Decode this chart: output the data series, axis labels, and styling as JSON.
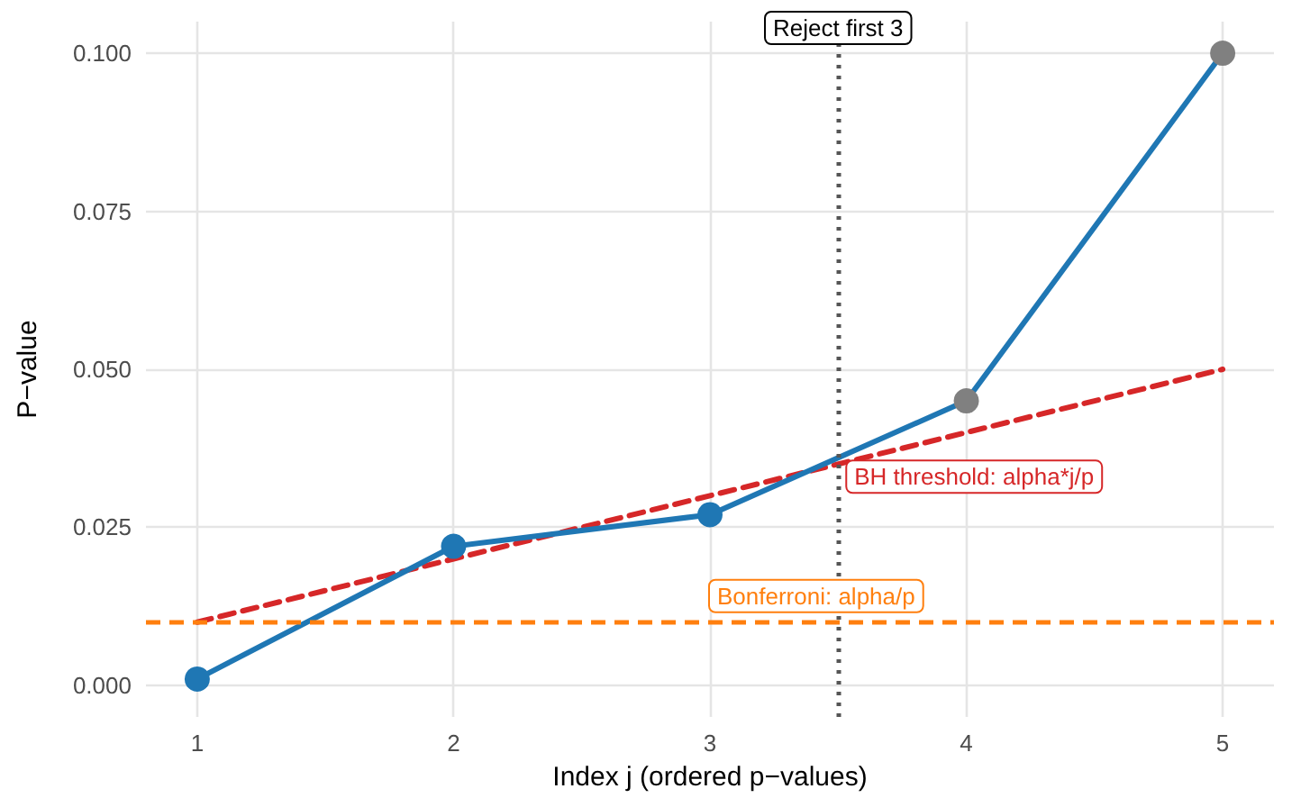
{
  "chart_data": {
    "type": "line",
    "xlabel": "Index j (ordered p−values)",
    "ylabel": "P−value",
    "x": [
      1,
      2,
      3,
      4,
      5
    ],
    "series": [
      {
        "color": "#d62728",
        "values": [
          0.01,
          0.02,
          0.03,
          0.04,
          0.05
        ],
        "line_style": "dashed",
        "marker": "none"
      },
      {
        "color": "#1f77b4",
        "colors": [
          "#1f77b4",
          "#1f77b4",
          "#1f77b4",
          "#808080",
          "#808080"
        ],
        "values": [
          0.001,
          0.022,
          0.027,
          0.045,
          0.1
        ],
        "marker": "circle",
        "line_style": "solid"
      }
    ],
    "annotations": [
      {
        "text": "BH threshold: alpha*j/p",
        "x": 3.5,
        "y": 0.033
      }
    ],
    "ref_lines": [
      {
        "axis": "y",
        "value": 0.01,
        "label": "Bonferroni: alpha/p",
        "color": "#ff7f0e",
        "line_style": "dashed"
      },
      {
        "axis": "x",
        "value": 3.5,
        "label": "Reject first 3",
        "color": "#555555",
        "line_style": "dotted"
      }
    ],
    "xlim": [
      0.8,
      5.2
    ],
    "xticks": [
      1,
      2,
      3,
      4,
      5
    ],
    "ylim": [
      -0.005,
      0.105
    ],
    "yticks": [
      {
        "value": 0,
        "label": "0.000"
      },
      {
        "value": 0.025,
        "label": "0.025"
      },
      {
        "value": 0.05,
        "label": "0.050"
      },
      {
        "value": 0.075,
        "label": "0.075"
      },
      {
        "value": 0.1,
        "label": "0.100"
      }
    ],
    "grid": true
  }
}
